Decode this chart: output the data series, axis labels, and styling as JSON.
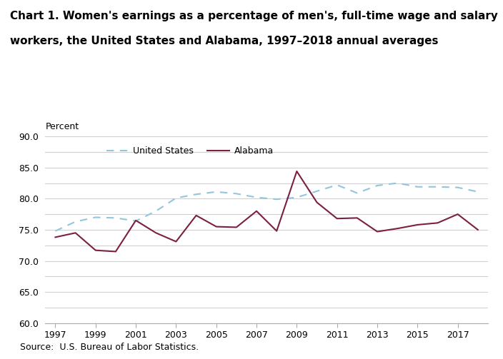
{
  "title_line1": "Chart 1. Women's earnings as a percentage of men's, full-time wage and salary",
  "title_line2": "workers, the United States and Alabama, 1997–2018 annual averages",
  "ylabel_text": "Percent",
  "source": "Source:  U.S. Bureau of Labor Statistics.",
  "years": [
    1997,
    1998,
    1999,
    2000,
    2001,
    2002,
    2003,
    2004,
    2005,
    2006,
    2007,
    2008,
    2009,
    2010,
    2011,
    2012,
    2013,
    2014,
    2015,
    2016,
    2017,
    2018
  ],
  "us_data": [
    74.8,
    76.3,
    77.0,
    76.9,
    76.4,
    78.0,
    80.1,
    80.7,
    81.1,
    80.8,
    80.2,
    79.9,
    80.2,
    81.2,
    82.2,
    80.9,
    82.1,
    82.5,
    81.9,
    81.9,
    81.8,
    81.1
  ],
  "al_data": [
    73.8,
    74.5,
    71.7,
    71.5,
    76.5,
    74.5,
    73.1,
    77.3,
    75.5,
    75.4,
    78.0,
    74.8,
    84.4,
    79.4,
    76.8,
    76.9,
    74.7,
    75.2,
    75.8,
    76.1,
    77.5,
    75.0
  ],
  "us_color": "#92c5de",
  "al_color": "#7b1f45",
  "ylim": [
    60.0,
    90.0
  ],
  "yticks": [
    60.0,
    62.5,
    65.0,
    67.5,
    70.0,
    72.5,
    75.0,
    77.5,
    80.0,
    82.5,
    85.0,
    87.5,
    90.0
  ],
  "ytick_labels": [
    "60.0",
    "",
    "65.0",
    "",
    "70.0",
    "",
    "75.0",
    "",
    "80.0",
    "",
    "85.0",
    "",
    "90.0"
  ],
  "xticks": [
    1997,
    1999,
    2001,
    2003,
    2005,
    2007,
    2009,
    2011,
    2013,
    2015,
    2017
  ],
  "bg_color": "#ffffff",
  "grid_color": "#d0d0d0",
  "legend_us": "United States",
  "legend_al": "Alabama",
  "title_fontsize": 11,
  "tick_fontsize": 9,
  "source_fontsize": 9
}
